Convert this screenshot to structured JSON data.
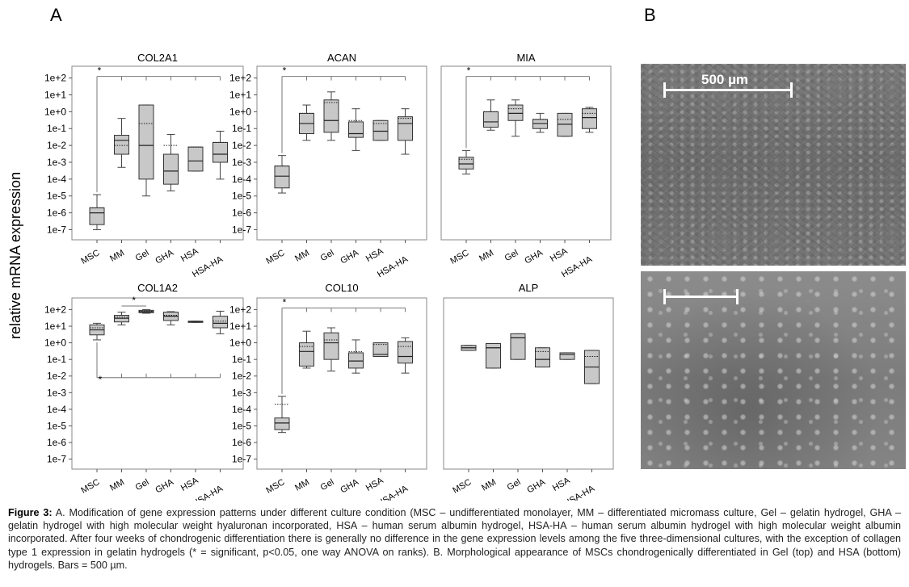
{
  "panel_labels": {
    "a": "A",
    "b": "B"
  },
  "ylabel": "relative mRNA expression",
  "categories": [
    "MSC",
    "MM",
    "Gel",
    "GHA",
    "HSA",
    "HSA-HA"
  ],
  "chart_data": [
    {
      "type": "box",
      "title": "COL2A1",
      "y_scale": "log10",
      "yticks": [
        "1e-7",
        "1e-6",
        "1e-5",
        "1e-4",
        "1e-3",
        "1e-2",
        "1e-1",
        "1e+0",
        "1e+1",
        "1e+2"
      ],
      "ylim_exp": [
        -7.6,
        2.7
      ],
      "boxes": [
        {
          "category": "MSC",
          "whisker_low": 1e-07,
          "q1": 2e-07,
          "median": 1e-06,
          "q3": 2e-06,
          "whisker_high": 1.2e-05,
          "mean": 2e-06
        },
        {
          "category": "MM",
          "whisker_low": 0.0005,
          "q1": 0.003,
          "median": 0.02,
          "q3": 0.04,
          "whisker_high": 0.4,
          "mean": 0.01
        },
        {
          "category": "Gel",
          "whisker_low": 1e-05,
          "q1": 0.0001,
          "median": 0.01,
          "q3": 2.5,
          "whisker_high": 2.5,
          "mean": 0.2
        },
        {
          "category": "GHA",
          "whisker_low": 2e-05,
          "q1": 5e-05,
          "median": 0.0003,
          "q3": 0.003,
          "whisker_high": 0.045,
          "mean": 0.01
        },
        {
          "category": "HSA",
          "whisker_low": 0.0003,
          "q1": 0.0003,
          "median": 0.0012,
          "q3": 0.008,
          "whisker_high": 0.008,
          "mean": 0.008
        },
        {
          "category": "HSA-HA",
          "whisker_low": 0.0001,
          "q1": 0.001,
          "median": 0.003,
          "q3": 0.015,
          "whisker_high": 0.07,
          "mean": 0.015
        }
      ],
      "significance": {
        "type": "top",
        "label": "*",
        "from": "MSC",
        "to": "HSA-HA"
      }
    },
    {
      "type": "box",
      "title": "ACAN",
      "y_scale": "log10",
      "yticks": [
        "1e-7",
        "1e-6",
        "1e-5",
        "1e-4",
        "1e-3",
        "1e-2",
        "1e-1",
        "1e+0",
        "1e+1",
        "1e+2"
      ],
      "ylim_exp": [
        -7.6,
        2.7
      ],
      "boxes": [
        {
          "category": "MSC",
          "whisker_low": 1.5e-05,
          "q1": 3e-05,
          "median": 0.00015,
          "q3": 0.0006,
          "whisker_high": 0.0025,
          "mean": 0.0006
        },
        {
          "category": "MM",
          "whisker_low": 0.02,
          "q1": 0.05,
          "median": 0.2,
          "q3": 0.8,
          "whisker_high": 2.5,
          "mean": 0.8
        },
        {
          "category": "Gel",
          "whisker_low": 0.02,
          "q1": 0.06,
          "median": 0.3,
          "q3": 5,
          "whisker_high": 15,
          "mean": 3.5
        },
        {
          "category": "GHA",
          "whisker_low": 0.005,
          "q1": 0.03,
          "median": 0.05,
          "q3": 0.25,
          "whisker_high": 1.5,
          "mean": 0.3
        },
        {
          "category": "HSA",
          "whisker_low": 0.02,
          "q1": 0.02,
          "median": 0.07,
          "q3": 0.3,
          "whisker_high": 0.3,
          "mean": 0.2
        },
        {
          "category": "HSA-HA",
          "whisker_low": 0.003,
          "q1": 0.02,
          "median": 0.2,
          "q3": 0.5,
          "whisker_high": 1.5,
          "mean": 0.4
        }
      ],
      "significance": {
        "type": "top",
        "label": "*",
        "from": "MSC",
        "to": "HSA-HA"
      }
    },
    {
      "type": "box",
      "title": "MIA",
      "y_scale": "log10",
      "yticks": [],
      "ylim_exp": [
        -7.6,
        2.7
      ],
      "boxes": [
        {
          "category": "MSC",
          "whisker_low": 0.0002,
          "q1": 0.0004,
          "median": 0.0008,
          "q3": 0.002,
          "whisker_high": 0.005,
          "mean": 0.0015
        },
        {
          "category": "MM",
          "whisker_low": 0.08,
          "q1": 0.12,
          "median": 0.25,
          "q3": 1,
          "whisker_high": 5,
          "mean": 1
        },
        {
          "category": "Gel",
          "whisker_low": 0.035,
          "q1": 0.3,
          "median": 0.8,
          "q3": 2.5,
          "whisker_high": 5,
          "mean": 1.5
        },
        {
          "category": "GHA",
          "whisker_low": 0.06,
          "q1": 0.1,
          "median": 0.2,
          "q3": 0.35,
          "whisker_high": 0.8,
          "mean": 0.35
        },
        {
          "category": "HSA",
          "whisker_low": 0.035,
          "q1": 0.035,
          "median": 0.18,
          "q3": 0.8,
          "whisker_high": 0.8,
          "mean": 0.35
        },
        {
          "category": "HSA-HA",
          "whisker_low": 0.06,
          "q1": 0.1,
          "median": 0.45,
          "q3": 1.5,
          "whisker_high": 1.8,
          "mean": 0.8
        }
      ],
      "significance": {
        "type": "top",
        "label": "*",
        "from": "MSC",
        "to": "HSA-HA"
      }
    },
    {
      "type": "box",
      "title": "COL1A2",
      "y_scale": "log10",
      "yticks": [
        "1e-7",
        "1e-6",
        "1e-5",
        "1e-4",
        "1e-3",
        "1e-2",
        "1e-1",
        "1e+0",
        "1e+1",
        "1e+2"
      ],
      "ylim_exp": [
        -7.6,
        2.7
      ],
      "boxes": [
        {
          "category": "MSC",
          "whisker_low": 1.5,
          "q1": 3,
          "median": 6,
          "q3": 12,
          "whisker_high": 15,
          "mean": 8
        },
        {
          "category": "MM",
          "whisker_low": 12,
          "q1": 18,
          "median": 30,
          "q3": 45,
          "whisker_high": 70,
          "mean": 35
        },
        {
          "category": "Gel",
          "whisker_low": 60,
          "q1": 65,
          "median": 75,
          "q3": 90,
          "whisker_high": 100,
          "mean": 80
        },
        {
          "category": "GHA",
          "whisker_low": 12,
          "q1": 22,
          "median": 40,
          "q3": 70,
          "whisker_high": 75,
          "mean": 45
        },
        {
          "category": "HSA",
          "whisker_low": 17,
          "q1": 17,
          "median": 19,
          "q3": 20,
          "whisker_high": 20,
          "mean": 19
        },
        {
          "category": "HSA-HA",
          "whisker_low": 3.5,
          "q1": 8,
          "median": 15,
          "q3": 40,
          "whisker_high": 80,
          "mean": 20
        }
      ],
      "significance": [
        {
          "type": "top",
          "label": "*",
          "from": "MM",
          "to": "Gel"
        },
        {
          "type": "bottom",
          "label": "*",
          "from": "MSC",
          "to": "HSA-HA"
        }
      ]
    },
    {
      "type": "box",
      "title": "COL10",
      "y_scale": "log10",
      "yticks": [
        "1e-7",
        "1e-6",
        "1e-5",
        "1e-4",
        "1e-3",
        "1e-2",
        "1e-1",
        "1e+0",
        "1e+1",
        "1e+2"
      ],
      "ylim_exp": [
        -7.6,
        2.7
      ],
      "boxes": [
        {
          "category": "MSC",
          "whisker_low": 4e-06,
          "q1": 6e-06,
          "median": 1.5e-05,
          "q3": 3e-05,
          "whisker_high": 0.0006,
          "mean": 0.0002
        },
        {
          "category": "MM",
          "whisker_low": 0.03,
          "q1": 0.04,
          "median": 0.3,
          "q3": 1,
          "whisker_high": 5,
          "mean": 0.6
        },
        {
          "category": "Gel",
          "whisker_low": 0.02,
          "q1": 0.1,
          "median": 1,
          "q3": 4,
          "whisker_high": 8,
          "mean": 1.5
        },
        {
          "category": "GHA",
          "whisker_low": 0.015,
          "q1": 0.03,
          "median": 0.08,
          "q3": 0.25,
          "whisker_high": 1.5,
          "mean": 0.3
        },
        {
          "category": "HSA",
          "whisker_low": 0.15,
          "q1": 0.15,
          "median": 0.2,
          "q3": 1,
          "whisker_high": 1,
          "mean": 0.8
        },
        {
          "category": "HSA-HA",
          "whisker_low": 0.015,
          "q1": 0.06,
          "median": 0.15,
          "q3": 1.2,
          "whisker_high": 2,
          "mean": 0.6
        }
      ],
      "significance": {
        "type": "top",
        "label": "*",
        "from": "MSC",
        "to": "HSA-HA"
      }
    },
    {
      "type": "box",
      "title": "ALP",
      "y_scale": "log10",
      "yticks": [],
      "ylim_exp": [
        -7.6,
        2.7
      ],
      "boxes": [
        {
          "category": "MSC",
          "whisker_low": 0.35,
          "q1": 0.35,
          "median": 0.5,
          "q3": 0.7,
          "whisker_high": 0.7,
          "mean": 0.5
        },
        {
          "category": "MM",
          "whisker_low": 0.03,
          "q1": 0.03,
          "median": 0.5,
          "q3": 0.9,
          "whisker_high": 0.9,
          "mean": 0.5
        },
        {
          "category": "Gel",
          "whisker_low": 0.1,
          "q1": 0.1,
          "median": 2,
          "q3": 3.5,
          "whisker_high": 3.5,
          "mean": 2
        },
        {
          "category": "GHA",
          "whisker_low": 0.035,
          "q1": 0.035,
          "median": 0.1,
          "q3": 0.5,
          "whisker_high": 0.5,
          "mean": 0.3
        },
        {
          "category": "HSA",
          "whisker_low": 0.1,
          "q1": 0.1,
          "median": 0.2,
          "q3": 0.25,
          "whisker_high": 0.25,
          "mean": 0.2
        },
        {
          "category": "HSA-HA",
          "whisker_low": 0.0035,
          "q1": 0.0035,
          "median": 0.035,
          "q3": 0.35,
          "whisker_high": 0.35,
          "mean": 0.15
        }
      ],
      "significance": null
    }
  ],
  "micrograph": {
    "scale_label": "500 µm"
  },
  "caption": {
    "bold_label": "Figure 3:",
    "text": " A. Modification of gene expression patterns under different culture condition (MSC – undifferentiated monolayer, MM – differentiated micromass culture, Gel – gelatin hydrogel, GHA – gelatin hydrogel with high molecular weight hyaluronan incorporated, HSA – human serum albumin hydrogel, HSA-HA – human serum albumin hydrogel with high molecular weight albumin incorporated. After four weeks of chondrogenic differentiation there is generally no difference in the gene expression levels among the five three-dimensional cultures, with the exception of collagen type 1 expression in gelatin hydrogels (* = significant, p<0.05, one way ANOVA on ranks). B. Morphological appearance of MSCs chondrogenically differentiated in Gel (top) and HSA (bottom) hydrogels. Bars = 500 µm."
  }
}
